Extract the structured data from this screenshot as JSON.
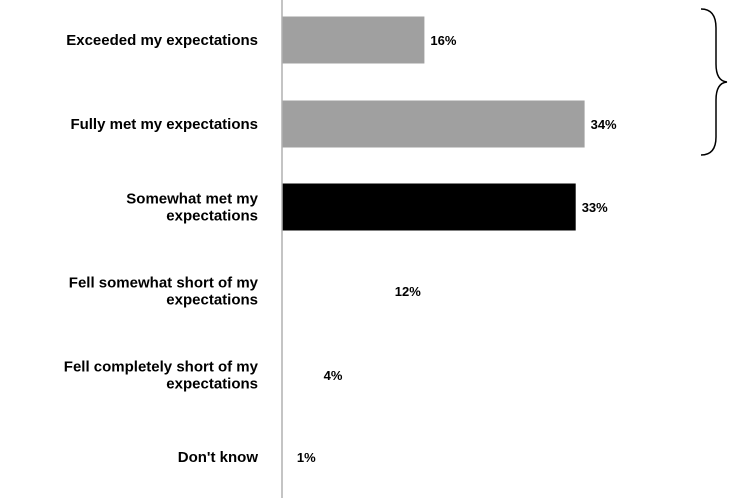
{
  "chart_data": {
    "type": "bar",
    "orientation": "horizontal",
    "categories": [
      "Exceeded my expectations",
      "Fully met my expectations",
      "Somewhat met my expectations",
      "Fell somewhat short of my expectations",
      "Fell completely short of my expectations",
      "Don't know"
    ],
    "category_lines": [
      [
        "Exceeded my expectations"
      ],
      [
        "Fully met my expectations"
      ],
      [
        "Somewhat met my",
        "expectations"
      ],
      [
        "Fell somewhat short of my",
        "expectations"
      ],
      [
        "Fell completely short of my",
        "expectations"
      ],
      [
        "Don't know"
      ]
    ],
    "values": [
      16,
      34,
      33,
      12,
      4,
      1
    ],
    "value_labels": [
      "16%",
      "34%",
      "33%",
      "12%",
      "4%",
      "1%"
    ],
    "bar_colors": [
      "#a0a0a0",
      "#a0a0a0",
      "#000000",
      "#ffffff",
      "#ffffff",
      "#ffffff"
    ],
    "title": "",
    "xlabel": "",
    "ylabel": "",
    "xlim": [
      0,
      50
    ],
    "grid": false,
    "legend": "none",
    "annotations": [
      "brace grouping Exceeded and Fully met"
    ]
  }
}
